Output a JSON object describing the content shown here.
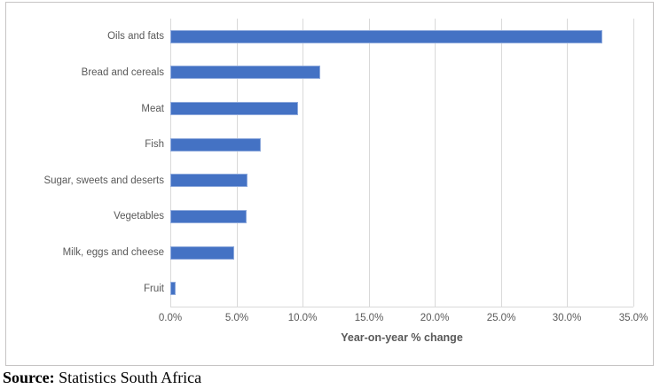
{
  "chart_data": {
    "type": "bar",
    "orientation": "horizontal",
    "categories": [
      "Oils and fats",
      "Bread and cereals",
      "Meat",
      "Fish",
      "Sugar, sweets and deserts",
      "Vegetables",
      "Milk, eggs and cheese",
      "Fruit"
    ],
    "values": [
      32.5,
      11.2,
      9.5,
      6.7,
      5.7,
      5.6,
      4.7,
      0.3
    ],
    "title": "",
    "xlabel": "Year-on-year % change",
    "ylabel": "",
    "xlim": [
      0,
      35
    ],
    "tick_labels": [
      "0.0%",
      "5.0%",
      "10.0%",
      "15.0%",
      "20.0%",
      "25.0%",
      "30.0%",
      "35.0%"
    ],
    "grid": true,
    "legend_position": "none",
    "bar_color": "#4472C4",
    "bar_border_color": "#8FAADC",
    "gridline_color": "#D9D9D9",
    "label_color": "#595959"
  },
  "source": {
    "label": "Source:",
    "text": " Statistics South Africa"
  }
}
